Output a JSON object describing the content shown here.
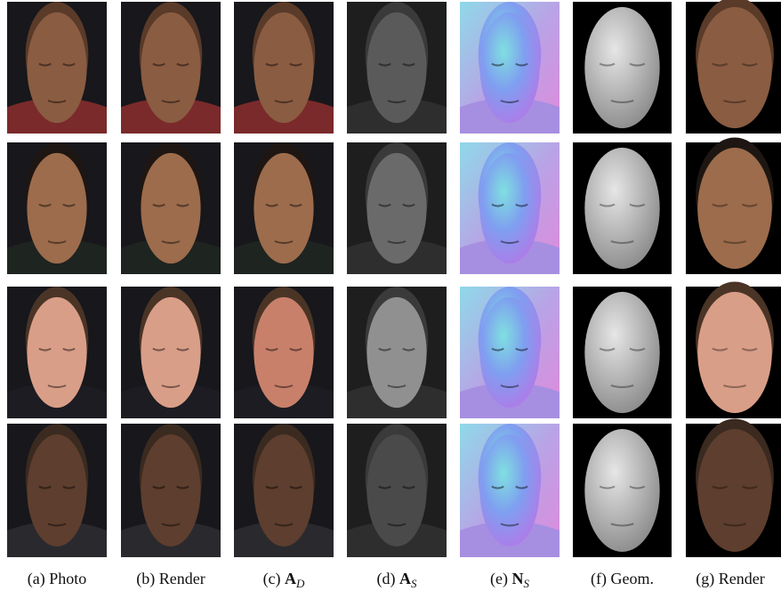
{
  "captions": [
    {
      "label": "(a)",
      "text": "Photo"
    },
    {
      "label": "(b)",
      "text": "Render"
    },
    {
      "label": "(c)",
      "text": "A",
      "sub": "D"
    },
    {
      "label": "(d)",
      "text": "A",
      "sub": "S"
    },
    {
      "label": "(e)",
      "text": "N",
      "sub": "S"
    },
    {
      "label": "(f)",
      "text": "Geom."
    },
    {
      "label": "(g)",
      "text": "Render"
    }
  ]
}
